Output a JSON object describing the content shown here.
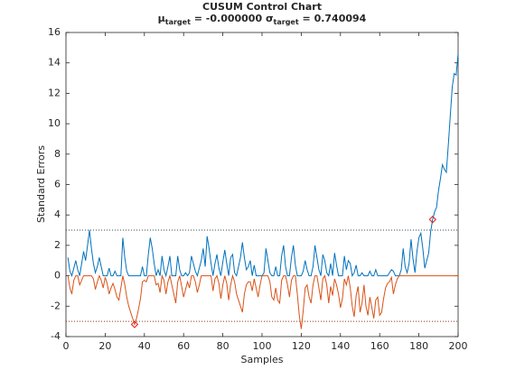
{
  "chart_data": {
    "type": "line",
    "title": "CUSUM Control Chart",
    "subtitle": [
      "μ",
      "target",
      " = -0.000000 ",
      "σ",
      "target",
      " = 0.740094"
    ],
    "xlabel": "Samples",
    "ylabel": "Standard Errors",
    "xlim": [
      0,
      200
    ],
    "ylim": [
      -4,
      16
    ],
    "xticks": [
      0,
      20,
      40,
      60,
      80,
      100,
      120,
      140,
      160,
      180,
      200
    ],
    "yticks": [
      -4,
      -2,
      0,
      2,
      4,
      6,
      8,
      10,
      12,
      14,
      16
    ],
    "x": [
      1,
      2,
      3,
      4,
      5,
      6,
      7,
      8,
      9,
      10,
      11,
      12,
      13,
      14,
      15,
      16,
      17,
      18,
      19,
      20,
      21,
      22,
      23,
      24,
      25,
      26,
      27,
      28,
      29,
      30,
      31,
      32,
      33,
      34,
      35,
      36,
      37,
      38,
      39,
      40,
      41,
      42,
      43,
      44,
      45,
      46,
      47,
      48,
      49,
      50,
      51,
      52,
      53,
      54,
      55,
      56,
      57,
      58,
      59,
      60,
      61,
      62,
      63,
      64,
      65,
      66,
      67,
      68,
      69,
      70,
      71,
      72,
      73,
      74,
      75,
      76,
      77,
      78,
      79,
      80,
      81,
      82,
      83,
      84,
      85,
      86,
      87,
      88,
      89,
      90,
      91,
      92,
      93,
      94,
      95,
      96,
      97,
      98,
      99,
      100,
      101,
      102,
      103,
      104,
      105,
      106,
      107,
      108,
      109,
      110,
      111,
      112,
      113,
      114,
      115,
      116,
      117,
      118,
      119,
      120,
      121,
      122,
      123,
      124,
      125,
      126,
      127,
      128,
      129,
      130,
      131,
      132,
      133,
      134,
      135,
      136,
      137,
      138,
      139,
      140,
      141,
      142,
      143,
      144,
      145,
      146,
      147,
      148,
      149,
      150,
      151,
      152,
      153,
      154,
      155,
      156,
      157,
      158,
      159,
      160,
      161,
      162,
      163,
      164,
      165,
      166,
      167,
      168,
      169,
      170,
      171,
      172,
      173,
      174,
      175,
      176,
      177,
      178,
      179,
      180,
      181,
      182,
      183,
      184,
      185,
      186,
      187,
      188,
      189,
      190,
      191,
      192,
      193,
      194,
      195,
      196,
      197,
      198,
      199,
      200
    ],
    "series": [
      {
        "color": "#0072bd",
        "limit": 3,
        "limit_color": "#3a4a5a",
        "values": [
          1.2,
          0.3,
          0,
          0.5,
          1.0,
          0.4,
          0,
          0.8,
          1.6,
          1.0,
          2.0,
          3.0,
          1.8,
          0.8,
          0.2,
          0.6,
          1.2,
          0.6,
          0,
          0,
          0,
          0.5,
          0,
          0,
          0.3,
          0,
          0,
          0,
          2.5,
          1.2,
          0.3,
          0,
          0,
          0,
          0,
          0,
          0,
          0,
          0.6,
          0,
          0,
          1.4,
          2.5,
          1.8,
          0.8,
          0,
          0.4,
          0,
          1.3,
          0.4,
          0,
          0.6,
          1.3,
          0,
          0,
          0,
          1.3,
          0.4,
          0,
          0,
          0.2,
          0,
          0.2,
          1.3,
          0.8,
          0.3,
          0,
          0.5,
          1.0,
          1.8,
          0.6,
          2.6,
          1.8,
          0.8,
          0,
          0.8,
          1.4,
          0.5,
          0,
          0.9,
          1.7,
          0.8,
          0,
          1.2,
          1.4,
          0.2,
          0,
          0.6,
          1.2,
          2.2,
          1.2,
          0.4,
          0.6,
          1.0,
          0,
          0.7,
          0,
          0,
          0,
          0,
          0.2,
          1.8,
          1.0,
          0.2,
          0,
          0,
          0.6,
          0,
          0,
          1.3,
          2.0,
          0.6,
          0,
          0,
          1.2,
          2.0,
          0.7,
          0,
          0,
          0,
          0.3,
          1.0,
          0.4,
          0,
          0,
          0.6,
          2.0,
          1.2,
          0.4,
          0,
          1.4,
          1.0,
          0.2,
          0,
          0.8,
          0,
          1.5,
          0.7,
          0,
          0,
          0,
          1.3,
          0.4,
          1.0,
          0.8,
          0,
          0.2,
          0.7,
          0,
          0,
          0.2,
          0,
          0,
          0,
          0.3,
          0,
          0,
          0.4,
          0,
          0,
          0,
          0,
          0,
          0,
          0.2,
          0.4,
          0.3,
          0,
          0,
          0,
          0.4,
          1.8,
          0.6,
          0.2,
          0.8,
          2.4,
          1.1,
          0.2,
          1.6,
          2.5,
          2.8,
          1.8,
          0.5,
          1.0,
          1.5,
          2.9,
          3.7,
          4.2,
          4.5,
          5.6,
          6.4,
          7.3,
          7.0,
          6.8,
          8.6,
          10.5,
          12.4,
          13.3,
          13.2,
          14.6
        ]
      },
      {
        "color": "#d95319",
        "limit": -3,
        "limit_color": "#8a3a2a",
        "values": [
          0,
          -0.8,
          -1.2,
          -0.3,
          0,
          0,
          -0.6,
          -0.3,
          0,
          0,
          0,
          0,
          0,
          -0.2,
          -0.9,
          -0.4,
          0,
          -0.3,
          -0.8,
          -0.1,
          -0.5,
          -1.2,
          -0.8,
          -0.5,
          -0.9,
          -1.4,
          -1.6,
          -0.8,
          0,
          -0.6,
          -1.4,
          -2.0,
          -2.4,
          -2.8,
          -3.2,
          -2.8,
          -2.2,
          -1.5,
          -0.4,
          -0.3,
          -0.4,
          0,
          0,
          0,
          0,
          -0.6,
          -0.5,
          -1.1,
          0,
          -0.3,
          -1.2,
          -0.4,
          0,
          -0.6,
          -1.2,
          -1.8,
          -0.4,
          0,
          -0.7,
          -1.4,
          -0.9,
          -0.4,
          -0.8,
          0,
          0,
          -0.4,
          -1.1,
          -0.6,
          0,
          0,
          0,
          0,
          0,
          0,
          -1.0,
          -0.2,
          0,
          -0.5,
          -1.5,
          -0.6,
          0,
          -0.5,
          -1.6,
          -0.6,
          0,
          -0.4,
          -1.2,
          -1.6,
          -2.0,
          -2.4,
          -1.2,
          -0.6,
          -0.4,
          -0.4,
          -1.0,
          -0.2,
          -0.8,
          -1.4,
          -0.6,
          0,
          0,
          0,
          0,
          -0.4,
          -1.4,
          -1.6,
          -0.8,
          -1.6,
          -1.8,
          -0.3,
          0,
          0,
          -0.6,
          -1.4,
          -0.3,
          0,
          0,
          -1.2,
          -2.6,
          -3.5,
          -2.3,
          -0.8,
          -0.6,
          -1.4,
          -1.8,
          -0.6,
          0,
          0,
          -0.8,
          -1.6,
          -0.2,
          0,
          -0.6,
          -1.8,
          -0.7,
          -1.3,
          -0.2,
          -0.6,
          -1.2,
          -2.1,
          -1.5,
          -0.2,
          -0.6,
          0,
          -0.8,
          -2.0,
          -2.7,
          -1.3,
          -0.7,
          -2.4,
          -1.8,
          -0.6,
          -2.0,
          -2.6,
          -1.4,
          -2.1,
          -2.8,
          -1.6,
          -1.4,
          -2.6,
          -2.4,
          -1.5,
          -0.8,
          -0.5,
          -0.4,
          -0.1,
          -1.2,
          -0.6,
          -0.2,
          0,
          0,
          0,
          0,
          0,
          0,
          0,
          0,
          0,
          0,
          0,
          0,
          0,
          0,
          0,
          0,
          0,
          0,
          0,
          0,
          0,
          0,
          0,
          0,
          0,
          0,
          0,
          0,
          0,
          0,
          0
        ]
      }
    ],
    "marker_color": "#e0201a"
  }
}
